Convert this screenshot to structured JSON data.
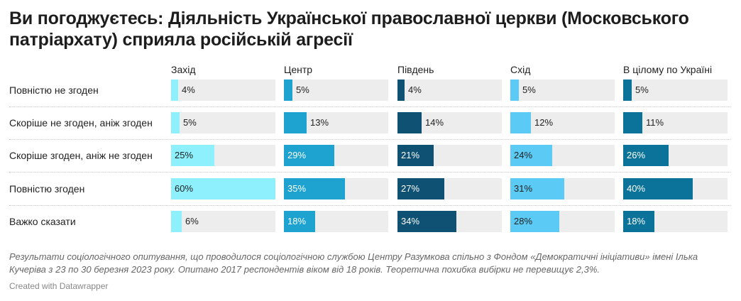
{
  "title": "Ви погоджуєтесь: Діяльність Української православної церкви (Московського патріархату) сприяла російській агресії",
  "notes": "Результати соціологічного опитування, що проводилося соціологічною службою Центру Разумкова спільно з Фондом «Демократичні ініціативи» імені Ілька Кучеріва з 23 по 30 березня 2023 року. Опитано 2017 респондентів віком від 18 років. Теоретична похибка вибірки не перевищує 2,3%.",
  "credit": "Created with Datawrapper",
  "chart_data": {
    "type": "bar",
    "orientation": "horizontal",
    "layout": "small-multiples",
    "categories": [
      "Повністю не згоден",
      "Скоріше не згоден, аніж згоден",
      "Скоріше згоден, аніж не згоден",
      "Повністю згоден",
      "Важко сказати"
    ],
    "value_labels": [
      [
        "4%",
        "5%",
        "25%",
        "60%",
        "6%"
      ],
      [
        "5%",
        "13%",
        "29%",
        "35%",
        "18%"
      ],
      [
        "4%",
        "14%",
        "21%",
        "27%",
        "34%"
      ],
      [
        "5%",
        "12%",
        "24%",
        "31%",
        "28%"
      ],
      [
        "5%",
        "11%",
        "26%",
        "40%",
        "18%"
      ]
    ],
    "series": [
      {
        "name": "Захід",
        "values": [
          4,
          5,
          25,
          60,
          6
        ],
        "color": "#8ef0fc"
      },
      {
        "name": "Центр",
        "values": [
          5,
          13,
          29,
          35,
          18
        ],
        "color": "#1ea3d0"
      },
      {
        "name": "Південь",
        "values": [
          4,
          14,
          21,
          27,
          34
        ],
        "color": "#0e5172"
      },
      {
        "name": "Схід",
        "values": [
          5,
          12,
          24,
          31,
          28
        ],
        "color": "#5bcaf5"
      },
      {
        "name": "В цілому по Україні",
        "values": [
          5,
          11,
          26,
          40,
          18
        ],
        "color": "#0b7399"
      }
    ],
    "xlim": [
      0,
      60
    ],
    "unit": "%",
    "track_color": "#ededed",
    "grid": false,
    "legend": "none"
  }
}
